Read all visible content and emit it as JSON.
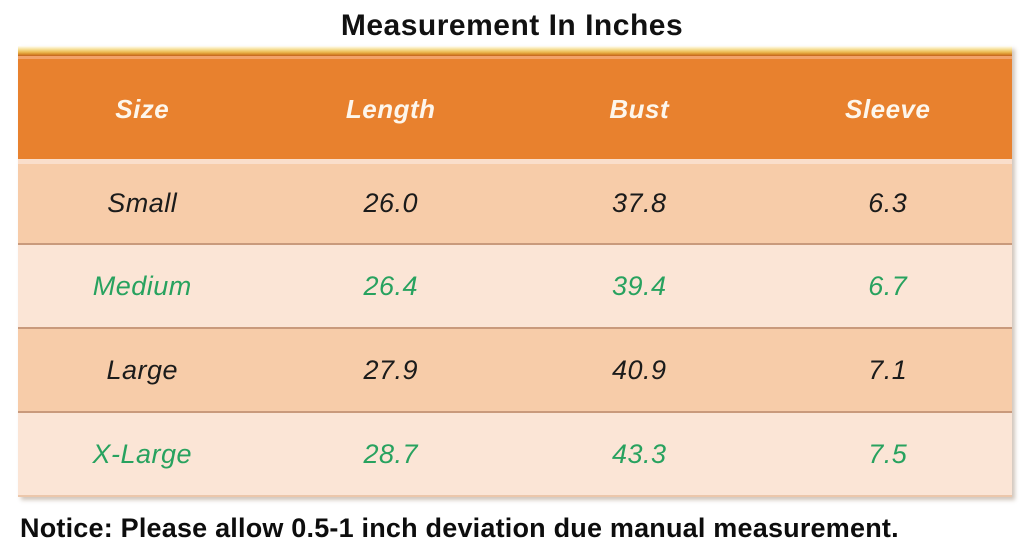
{
  "header": {
    "title": "Measurement In Inches"
  },
  "chart_data": {
    "type": "table",
    "title": "Measurement In Inches",
    "columns": [
      "Size",
      "Length",
      "Bust",
      "Sleeve"
    ],
    "rows": [
      [
        "Small",
        "26.0",
        "37.8",
        "6.3"
      ],
      [
        "Medium",
        "26.4",
        "39.4",
        "6.7"
      ],
      [
        "Large",
        "27.9",
        "40.9",
        "7.1"
      ],
      [
        "X-Large",
        "28.7",
        "43.3",
        "7.5"
      ]
    ],
    "row_text_colors": [
      "#1b1b1b",
      "#28a25f",
      "#1b1b1b",
      "#28a25f"
    ],
    "units": "inches",
    "layout_hints": {
      "header_background": "#e8812e",
      "header_text_color": "#fdf6ec",
      "row_background_odd": "#f7cca9",
      "row_background_even": "#fbe5d6",
      "top_accent_gradient": [
        "#fffef8",
        "#f7e3a0",
        "#ecbc55",
        "#d98e2b",
        "#c2611e"
      ],
      "text_style": "italic"
    }
  },
  "notice": {
    "text": "Notice: Please allow 0.5-1 inch deviation due manual measurement."
  }
}
